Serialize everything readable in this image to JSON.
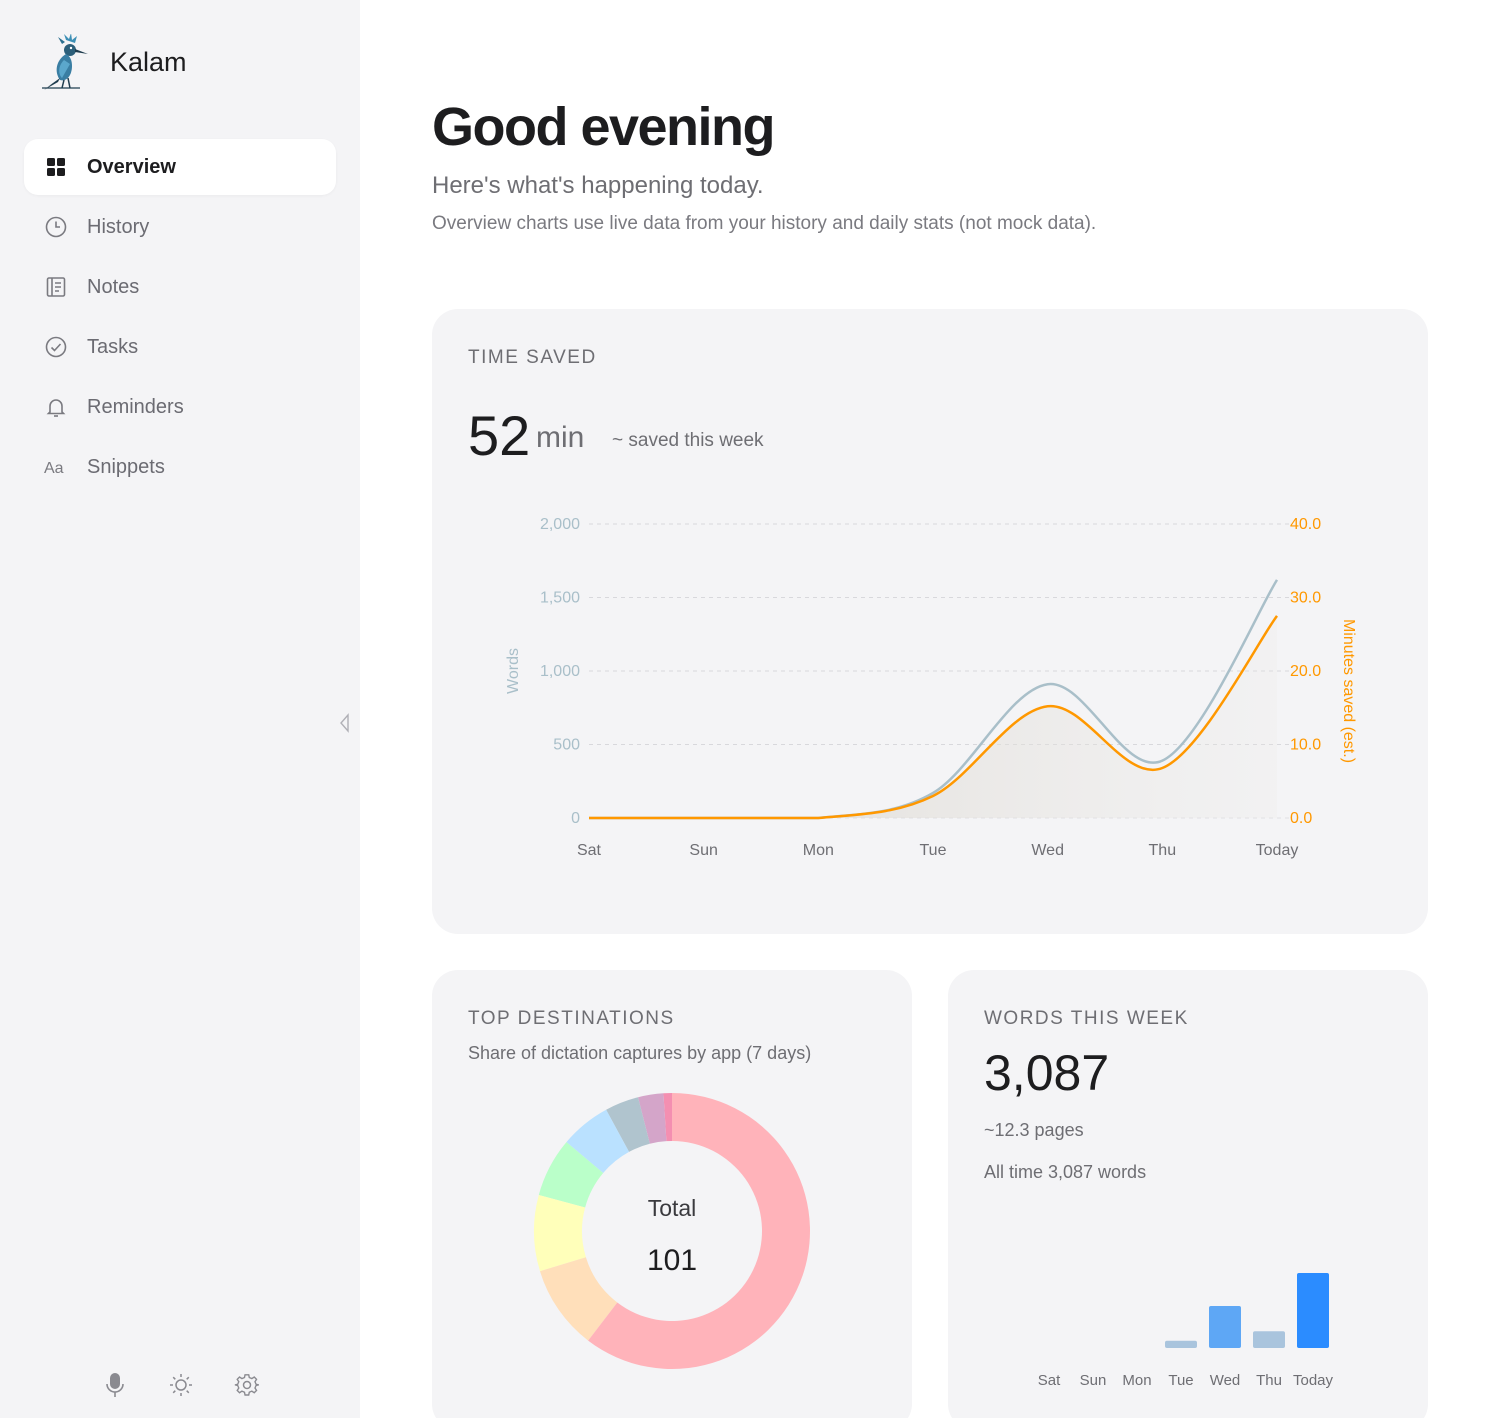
{
  "app": {
    "name": "Kalam"
  },
  "sidebar": {
    "items": [
      {
        "label": "Overview",
        "icon": "grid-icon",
        "active": true
      },
      {
        "label": "History",
        "icon": "clock-icon"
      },
      {
        "label": "Notes",
        "icon": "notebook-icon"
      },
      {
        "label": "Tasks",
        "icon": "check-circle-icon"
      },
      {
        "label": "Reminders",
        "icon": "bell-icon"
      },
      {
        "label": "Snippets",
        "icon": "text-icon"
      }
    ],
    "footer": [
      "microphone-icon",
      "sun-icon",
      "gear-icon"
    ]
  },
  "header": {
    "greeting": "Good evening",
    "subtitle": "Here's what's happening today.",
    "note": "Overview charts use live data from your history and daily stats (not mock data)."
  },
  "time_saved": {
    "title": "TIME SAVED",
    "value": "52",
    "unit": "min",
    "caption": "~ saved this week"
  },
  "top_destinations": {
    "title": "TOP DESTINATIONS",
    "subtitle": "Share of dictation captures by app (7 days)",
    "center_label": "Total",
    "center_value": "101"
  },
  "words_week": {
    "title": "WORDS THIS WEEK",
    "value": "3,087",
    "pages": "~12.3 pages",
    "all_time": "All time 3,087 words"
  },
  "chart_data": [
    {
      "type": "line",
      "categories": [
        "Sat",
        "Sun",
        "Mon",
        "Tue",
        "Wed",
        "Thu",
        "Today"
      ],
      "ylabel": "Words",
      "y2label": "Minutes saved (est.)",
      "ylim": [
        0,
        2000
      ],
      "y2lim": [
        0,
        40
      ],
      "yticks": [
        "0",
        "500",
        "1,000",
        "1,500",
        "2,000"
      ],
      "y2ticks": [
        "0.0",
        "10.0",
        "20.0",
        "30.0",
        "40.0"
      ],
      "grid": true,
      "series": [
        {
          "name": "Words",
          "axis": "left",
          "color": "#a9bfc9",
          "values": [
            0,
            0,
            0,
            170,
            910,
            390,
            1620
          ]
        },
        {
          "name": "Minutes saved (est.)",
          "axis": "right",
          "color": "#ff9800",
          "values": [
            0,
            0,
            0,
            3.0,
            15.2,
            6.8,
            27.5
          ]
        }
      ]
    },
    {
      "type": "pie",
      "slices": [
        {
          "value": 61,
          "color": "#ffb3ba"
        },
        {
          "value": 10,
          "color": "#ffdfba"
        },
        {
          "value": 9,
          "color": "#ffffba"
        },
        {
          "value": 7,
          "color": "#baffc9"
        },
        {
          "value": 6,
          "color": "#bae1ff"
        },
        {
          "value": 4,
          "color": "#b0c4ce"
        },
        {
          "value": 3,
          "color": "#d4a5c9"
        },
        {
          "value": 1,
          "color": "#f48fb1"
        }
      ]
    },
    {
      "type": "bar",
      "categories": [
        "Sat",
        "Sun",
        "Mon",
        "Tue",
        "Wed",
        "Thu",
        "Today"
      ],
      "values": [
        0,
        0,
        0,
        120,
        700,
        280,
        1250
      ],
      "highlight_color": "#2b8cff",
      "colors": [
        "#a9c4dd",
        "#a9c4dd",
        "#a9c4dd",
        "#a9c4dd",
        "#5ea7f5",
        "#a9c4dd",
        "#2b8cff"
      ]
    }
  ]
}
